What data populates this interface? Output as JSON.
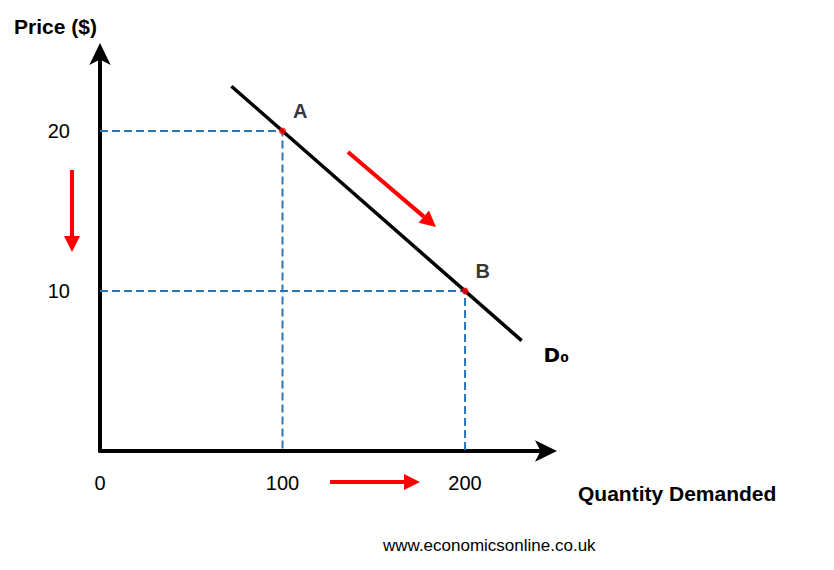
{
  "chart_data": {
    "type": "line",
    "x_label": "Quantity Demanded",
    "y_label": "Price ($)",
    "series": [
      {
        "name": "D₀",
        "color": "#000000",
        "x": [
          72,
          231
        ],
        "values": [
          22.8,
          6.9
        ]
      }
    ],
    "annotations": [
      {
        "text": "A",
        "x": 100,
        "y": 20,
        "color": "#ff0000"
      },
      {
        "text": "B",
        "x": 200,
        "y": 10,
        "color": "#ff0000"
      }
    ],
    "guides": {
      "color": "#2e75b6",
      "line_style": "dashed"
    },
    "xlim": [
      0,
      246
    ],
    "ylim": [
      0,
      25
    ],
    "xticks": [
      0,
      100,
      200
    ],
    "yticks": [
      10,
      20
    ],
    "grid": false,
    "source": "www.economicsonline.co.uk"
  }
}
